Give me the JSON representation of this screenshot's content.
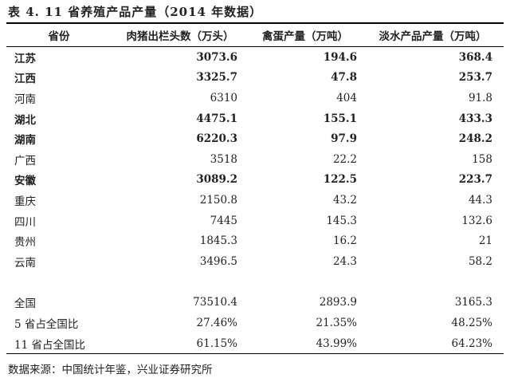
{
  "title": "表 4.  11 省养殖产品产量（2014 年数据）",
  "table": {
    "header": [
      "省份",
      "肉猪出栏头数（万头）",
      "禽蛋产量（万吨）",
      "淡水产品产量（万吨）"
    ],
    "rows": [
      [
        "江苏",
        "3073.6",
        "194.6",
        "368.4"
      ],
      [
        "江西",
        "3325.7",
        "47.8",
        "253.7"
      ],
      [
        "河南",
        "6310",
        "404",
        "91.8"
      ],
      [
        "湖北",
        "4475.1",
        "155.1",
        "433.3"
      ],
      [
        "湖南",
        "6220.3",
        "97.9",
        "248.2"
      ],
      [
        "广西",
        "3518",
        "22.2",
        "158"
      ],
      [
        "安徽",
        "3089.2",
        "122.5",
        "223.7"
      ],
      [
        "重庆",
        "2150.8",
        "43.2",
        "44.3"
      ],
      [
        "四川",
        "7445",
        "145.3",
        "132.6"
      ],
      [
        "贵州",
        "1845.3",
        "16.2",
        "21"
      ],
      [
        "云南",
        "3496.5",
        "24.3",
        "58.2"
      ]
    ],
    "totals": [
      [
        "全国",
        "73510.4",
        "2893.9",
        "3165.3"
      ],
      [
        "5 省占全国比",
        "27.46%",
        "21.35%",
        "48.25%"
      ],
      [
        "11 省占全国比",
        "61.15%",
        "43.99%",
        "64.23%"
      ]
    ]
  },
  "source": "数据来源：中国统计年鉴，兴业证券研究所"
}
